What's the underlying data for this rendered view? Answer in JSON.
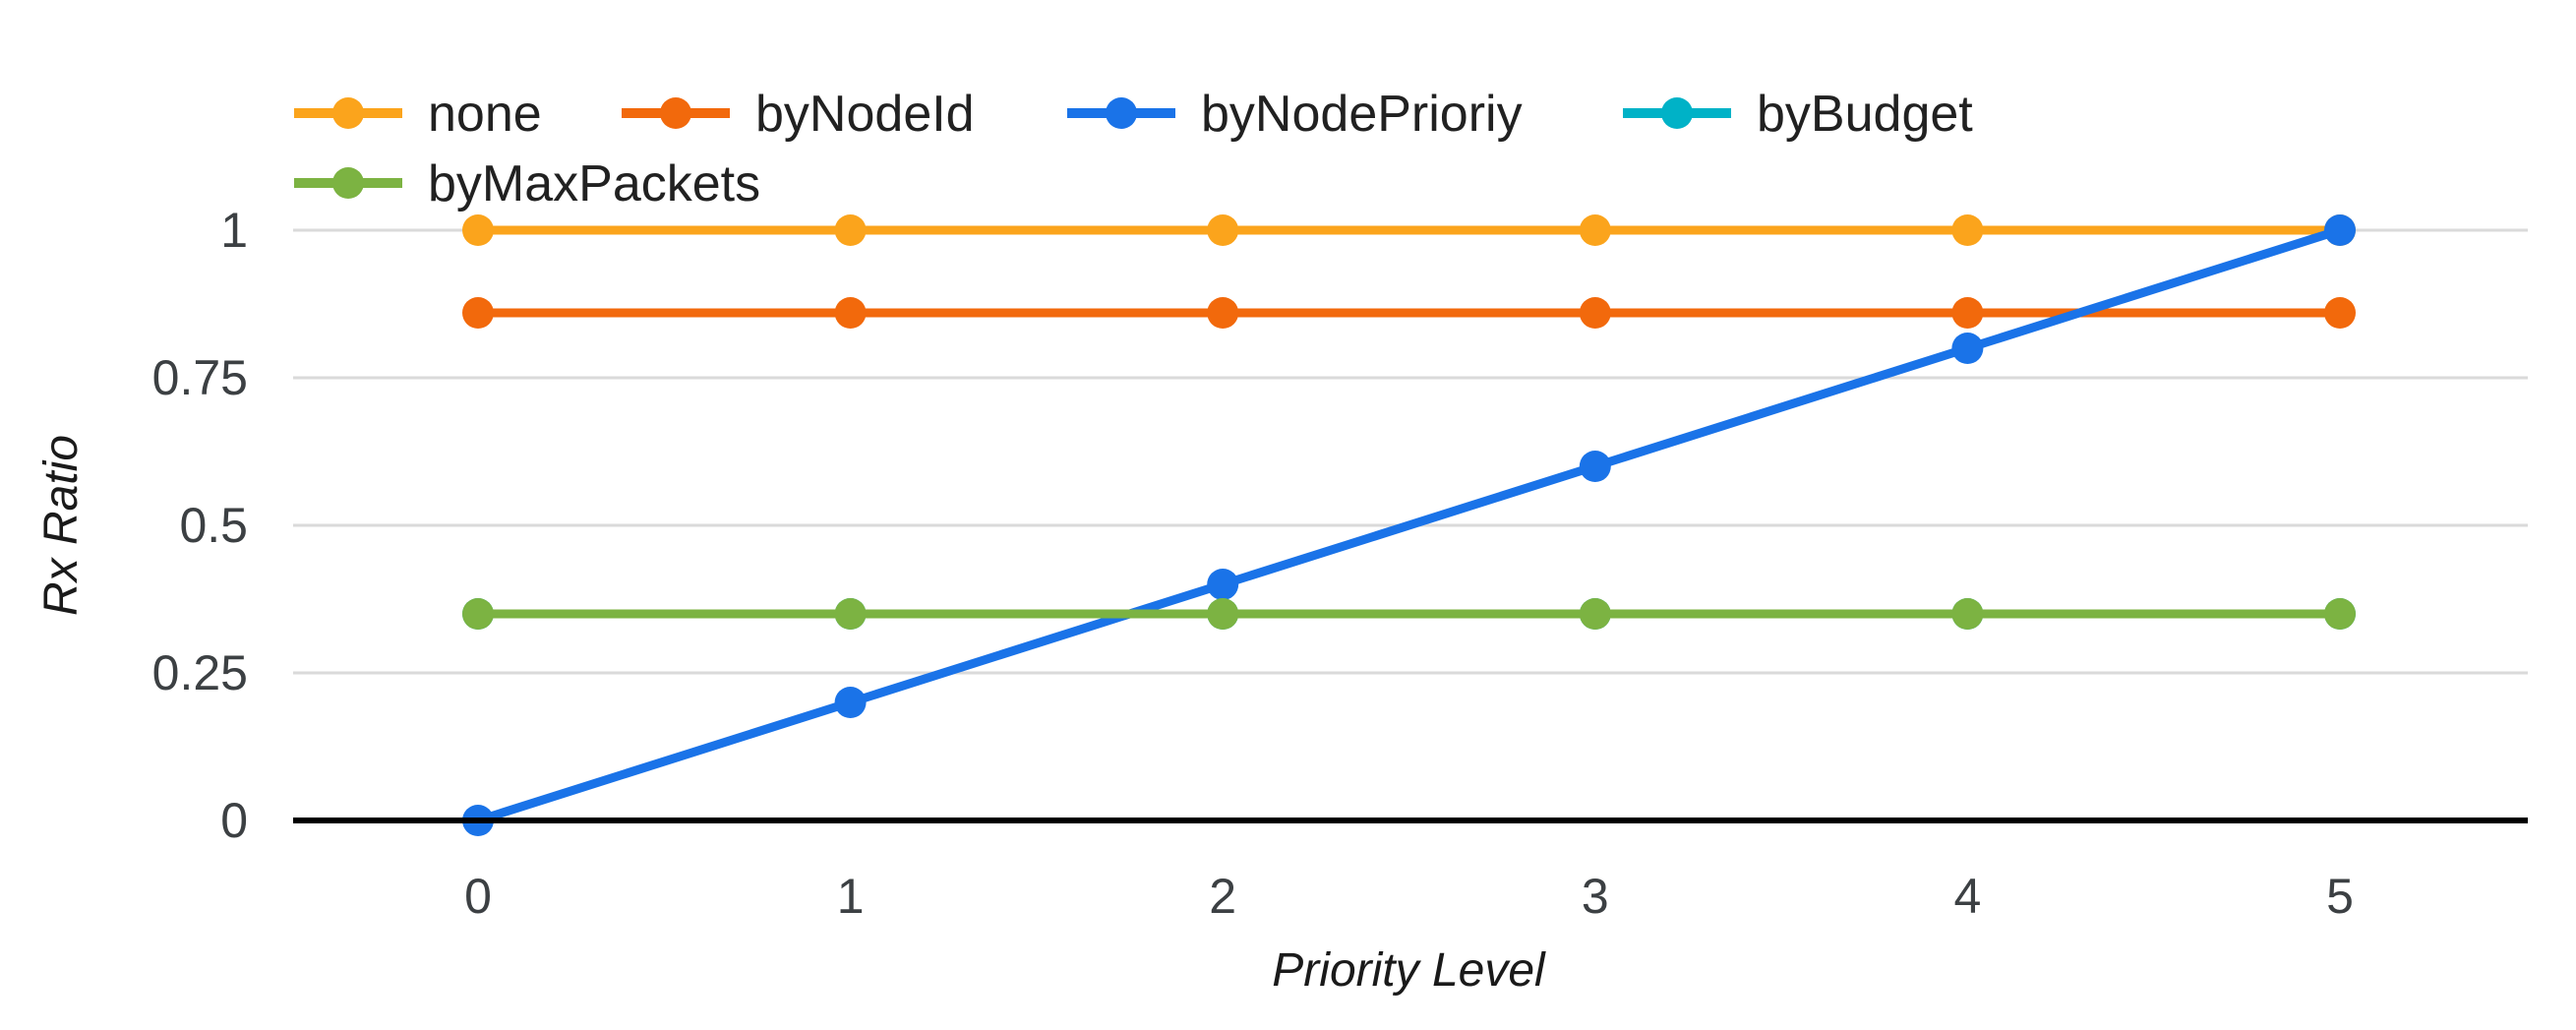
{
  "chart_data": {
    "type": "line",
    "title": "",
    "xlabel": "Priority Level",
    "ylabel": "Rx Ratio",
    "x": [
      0,
      1,
      2,
      3,
      4,
      5
    ],
    "x_tick_labels": [
      "0",
      "1",
      "2",
      "3",
      "4",
      "5"
    ],
    "y_ticks": [
      0,
      0.25,
      0.5,
      0.75,
      1
    ],
    "y_tick_labels": [
      "0",
      "0.25",
      "0.5",
      "0.75",
      "1"
    ],
    "xlim": [
      -0.5,
      5.5
    ],
    "ylim": [
      0,
      1
    ],
    "grid": "horizontal",
    "legend_position": "top-left",
    "legend_rows": [
      [
        "none",
        "byNodeId",
        "byNodePrioriy",
        "byBudget"
      ],
      [
        "byMaxPackets"
      ]
    ],
    "series": [
      {
        "name": "none",
        "color": "#FBA41C",
        "values": [
          1,
          1,
          1,
          1,
          1,
          1
        ]
      },
      {
        "name": "byNodeId",
        "color": "#F2690C",
        "values": [
          0.86,
          0.86,
          0.86,
          0.86,
          0.86,
          0.86
        ]
      },
      {
        "name": "byNodePrioriy",
        "color": "#1A73E8",
        "values": [
          0,
          0.2,
          0.4,
          0.6,
          0.8,
          1
        ]
      },
      {
        "name": "byBudget",
        "color": "#00B2C7",
        "values": [
          0.35,
          0.35,
          0.35,
          0.35,
          0.35,
          0.35
        ],
        "note": "line fully overlapped by byMaxPackets, only legend swatch visible"
      },
      {
        "name": "byMaxPackets",
        "color": "#7CB342",
        "values": [
          0.35,
          0.35,
          0.35,
          0.35,
          0.35,
          0.35
        ]
      }
    ],
    "marker": "circle",
    "colors": {
      "gridline": "#DADADA",
      "axis_baseline": "#000000",
      "tick_label": "#3C4043",
      "legend_label": "#212121",
      "background": "#FFFFFF"
    }
  }
}
